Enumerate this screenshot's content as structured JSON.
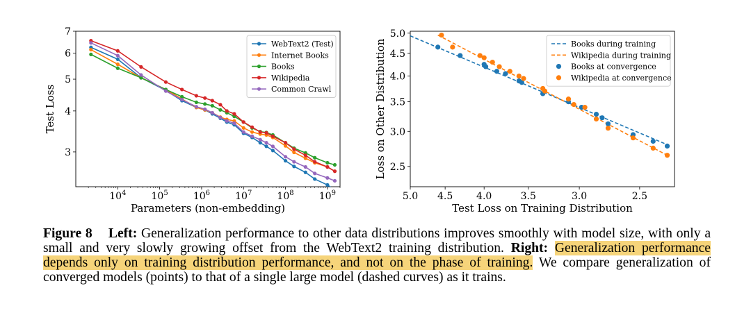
{
  "chart_data": [
    {
      "type": "line",
      "xscale": "log",
      "yscale": "log",
      "xlabel": "Parameters (non-embedding)",
      "ylabel": "Test Loss",
      "xlim": [
        1000.0,
        2000000000.0
      ],
      "ylim": [
        2.35,
        7.0
      ],
      "xticks": [
        {
          "v": 10000.0,
          "base": "10",
          "exp": "4"
        },
        {
          "v": 100000.0,
          "base": "10",
          "exp": "5"
        },
        {
          "v": 1000000.0,
          "base": "10",
          "exp": "6"
        },
        {
          "v": 10000000.0,
          "base": "10",
          "exp": "7"
        },
        {
          "v": 100000000.0,
          "base": "10",
          "exp": "8"
        },
        {
          "v": 1000000000.0,
          "base": "10",
          "exp": "9"
        }
      ],
      "yticks": [
        {
          "v": 7,
          "label": "7"
        },
        {
          "v": 6,
          "label": "6"
        },
        {
          "v": 5,
          "label": "5"
        },
        {
          "v": 4,
          "label": "4"
        },
        {
          "v": 3,
          "label": "3"
        }
      ],
      "legend_loc": "upper right",
      "series": [
        {
          "name": "WebText2 (Test)",
          "color": "#1f77b4",
          "x": [
            2300.0,
            10000.0,
            36000.0,
            140000.0,
            340000.0,
            750000.0,
            1200000.0,
            1800000.0,
            2800000.0,
            4000000.0,
            6000000.0,
            10000000.0,
            16000000.0,
            25000000.0,
            35000000.0,
            50000000.0,
            100000000.0,
            160000000.0,
            300000000.0,
            500000000.0,
            1000000000.0,
            1500000000.0
          ],
          "y": [
            6.25,
            5.75,
            5.05,
            4.62,
            4.3,
            4.1,
            4.03,
            3.92,
            3.8,
            3.7,
            3.63,
            3.42,
            3.32,
            3.2,
            3.12,
            3.03,
            2.82,
            2.71,
            2.6,
            2.48,
            2.38,
            2.3
          ]
        },
        {
          "name": "Internet Books",
          "color": "#ff7f0e",
          "x": [
            2300.0,
            10000.0,
            36000.0,
            140000.0,
            340000.0,
            750000.0,
            1200000.0,
            1800000.0,
            2800000.0,
            4000000.0,
            6000000.0,
            10000000.0,
            16000000.0,
            25000000.0,
            35000000.0,
            50000000.0,
            100000000.0,
            160000000.0,
            300000000.0,
            500000000.0,
            1000000000.0,
            1500000000.0
          ],
          "y": [
            6.15,
            5.55,
            5.05,
            4.65,
            4.35,
            4.1,
            4.03,
            3.95,
            3.83,
            3.77,
            3.73,
            3.55,
            3.45,
            3.4,
            3.38,
            3.32,
            3.13,
            2.99,
            2.87,
            2.78,
            2.7,
            2.62
          ]
        },
        {
          "name": "Books",
          "color": "#2ca02c",
          "x": [
            2300.0,
            10000.0,
            36000.0,
            140000.0,
            340000.0,
            750000.0,
            1200000.0,
            1800000.0,
            2800000.0,
            4000000.0,
            6000000.0,
            10000000.0,
            16000000.0,
            25000000.0,
            35000000.0,
            50000000.0,
            100000000.0,
            160000000.0,
            300000000.0,
            500000000.0,
            1000000000.0,
            1500000000.0
          ],
          "y": [
            5.95,
            5.4,
            5.05,
            4.65,
            4.42,
            4.25,
            4.2,
            4.15,
            4.03,
            3.95,
            3.85,
            3.7,
            3.55,
            3.46,
            3.44,
            3.38,
            3.2,
            3.08,
            2.98,
            2.88,
            2.78,
            2.74
          ]
        },
        {
          "name": "Wikipedia",
          "color": "#d62728",
          "x": [
            2300.0,
            10000.0,
            36000.0,
            140000.0,
            340000.0,
            750000.0,
            1200000.0,
            1800000.0,
            2800000.0,
            4000000.0,
            6000000.0,
            10000000.0,
            16000000.0,
            25000000.0,
            35000000.0,
            50000000.0,
            100000000.0,
            160000000.0,
            300000000.0,
            500000000.0,
            1000000000.0,
            1500000000.0
          ],
          "y": [
            6.55,
            6.1,
            5.45,
            4.9,
            4.65,
            4.45,
            4.38,
            4.3,
            4.18,
            4.0,
            3.92,
            3.7,
            3.57,
            3.45,
            3.43,
            3.35,
            3.2,
            3.06,
            2.93,
            2.8,
            2.7,
            2.62
          ]
        },
        {
          "name": "Common Crawl",
          "color": "#9467bd",
          "x": [
            2300.0,
            10000.0,
            36000.0,
            140000.0,
            340000.0,
            750000.0,
            1200000.0,
            1800000.0,
            2800000.0,
            4000000.0,
            6000000.0,
            10000000.0,
            16000000.0,
            25000000.0,
            35000000.0,
            50000000.0,
            100000000.0,
            160000000.0,
            300000000.0,
            500000000.0,
            1000000000.0,
            1500000000.0
          ],
          "y": [
            6.45,
            5.9,
            5.15,
            4.6,
            4.33,
            4.12,
            4.05,
            3.95,
            3.82,
            3.73,
            3.67,
            3.45,
            3.35,
            3.27,
            3.2,
            3.12,
            2.9,
            2.8,
            2.7,
            2.58,
            2.5,
            2.45
          ]
        }
      ]
    },
    {
      "type": "scatter",
      "xscale": "log",
      "yscale": "log",
      "xaxis_inverted": true,
      "xlabel": "Test Loss on Training Distribution",
      "ylabel": "Loss on Other Distribution",
      "xlim": [
        5.0,
        2.25
      ],
      "ylim": [
        2.25,
        5.05
      ],
      "xticks": [
        {
          "v": 5.0,
          "label": "5.0"
        },
        {
          "v": 4.5,
          "label": "4.5"
        },
        {
          "v": 4.0,
          "label": "4.0"
        },
        {
          "v": 3.5,
          "label": "3.5"
        },
        {
          "v": 3.0,
          "label": "3.0"
        },
        {
          "v": 2.5,
          "label": "2.5"
        }
      ],
      "yticks": [
        {
          "v": 5.0,
          "label": "5.0"
        },
        {
          "v": 4.5,
          "label": "4.5"
        },
        {
          "v": 4.0,
          "label": "4.0"
        },
        {
          "v": 3.5,
          "label": "3.5"
        },
        {
          "v": 3.0,
          "label": "3.0"
        },
        {
          "v": 2.5,
          "label": "2.5"
        }
      ],
      "legend_loc": "upper right",
      "lines": [
        {
          "name": "Books during training",
          "color": "#1f77b4",
          "dash": true,
          "x": [
            5.0,
            2.3
          ],
          "y": [
            4.93,
            2.8
          ]
        },
        {
          "name": "Wikipedia during training",
          "color": "#ff7f0e",
          "dash": true,
          "x": [
            4.6,
            2.3
          ],
          "y": [
            4.95,
            2.65
          ]
        }
      ],
      "series": [
        {
          "name": "Books at convergence",
          "color": "#1f77b4",
          "x": [
            4.6,
            4.3,
            4.0,
            3.98,
            3.85,
            3.75,
            3.6,
            3.57,
            3.35,
            3.1,
            2.98,
            2.85,
            2.8,
            2.75,
            2.55,
            2.4,
            2.3
          ],
          "y": [
            4.65,
            4.45,
            4.25,
            4.2,
            4.1,
            4.05,
            3.9,
            3.87,
            3.65,
            3.5,
            3.4,
            3.28,
            3.22,
            3.12,
            2.95,
            2.85,
            2.78
          ]
        },
        {
          "name": "Wikipedia at convergence",
          "color": "#ff7f0e",
          "x": [
            4.55,
            4.4,
            4.05,
            4.0,
            3.9,
            3.82,
            3.7,
            3.6,
            3.55,
            3.35,
            3.33,
            3.1,
            3.05,
            2.95,
            2.85,
            2.75,
            2.55,
            2.4,
            2.3
          ],
          "y": [
            4.95,
            4.65,
            4.45,
            4.4,
            4.3,
            4.2,
            4.1,
            4.0,
            3.95,
            3.75,
            3.7,
            3.55,
            3.45,
            3.4,
            3.2,
            3.05,
            2.9,
            2.75,
            2.65
          ]
        }
      ]
    }
  ],
  "caption": {
    "label": "Figure 8",
    "left_label": "Left:",
    "text1": "Generalization performance to other data distributions improves smoothly with model size, with only a small and very slowly growing offset from the WebText2 training distribution.",
    "right_label": "Right:",
    "highlight": "Generalization performance depends only on training distribution performance, and not on the phase of training.",
    "text2": "We compare generalization of converged models (points) to that of a single large model (dashed curves) as it trains."
  }
}
